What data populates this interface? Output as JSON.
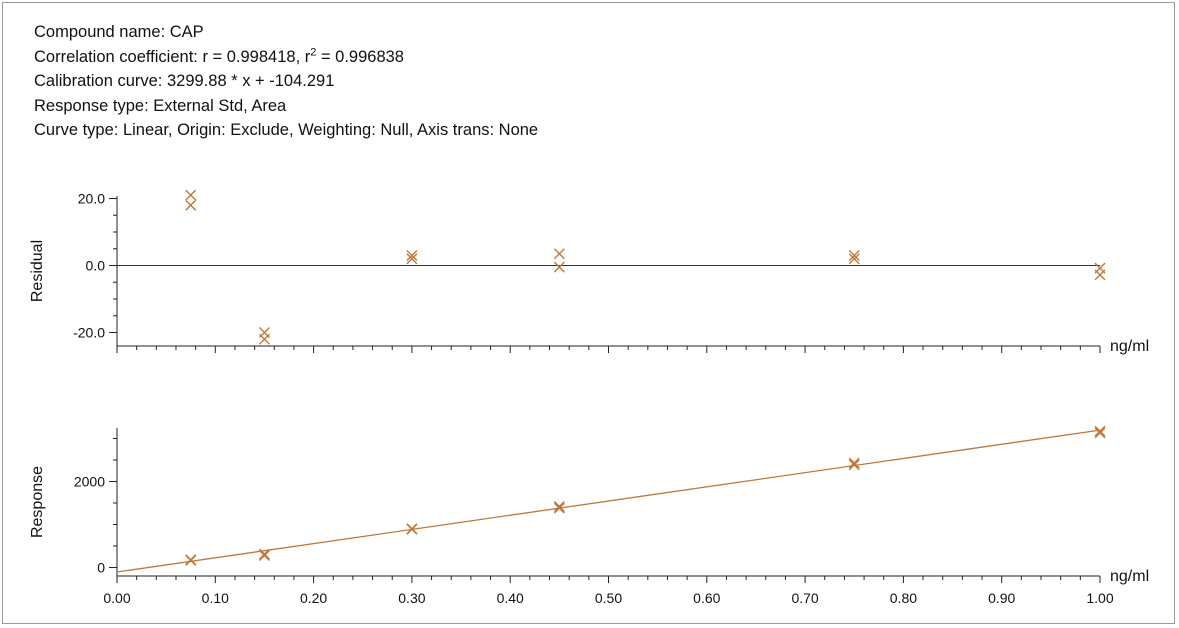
{
  "header": {
    "compound": "Compound name: CAP",
    "correlation_prefix": "Correlation coefficient: r = 0.998418, r",
    "correlation_sup": "2",
    "correlation_suffix": " = 0.996838",
    "calibration": "Calibration curve: 3299.88 * x + -104.291",
    "response_type": "Response type: External Std, Area",
    "curve_type": "Curve type: Linear, Origin: Exclude, Weighting: Null, Axis trans: None"
  },
  "colors": {
    "marker": "#c0783a",
    "fit_line": "#c0783a",
    "axis": "#222222"
  },
  "chart_data": [
    {
      "type": "scatter",
      "ylabel": "Residual",
      "xlabel": "ng/ml",
      "xlim": [
        0.0,
        1.0
      ],
      "ylim": [
        -22,
        22
      ],
      "yticks": [
        "20.0",
        "0.0",
        "-20.0"
      ],
      "ytick_values": [
        20,
        0,
        -20
      ],
      "reference_line": 0,
      "points": [
        {
          "x": 0.075,
          "y": 21
        },
        {
          "x": 0.075,
          "y": 18
        },
        {
          "x": 0.15,
          "y": -20
        },
        {
          "x": 0.15,
          "y": -22
        },
        {
          "x": 0.3,
          "y": 3
        },
        {
          "x": 0.3,
          "y": 2
        },
        {
          "x": 0.45,
          "y": 3.5
        },
        {
          "x": 0.45,
          "y": -0.5
        },
        {
          "x": 0.75,
          "y": 3
        },
        {
          "x": 0.75,
          "y": 2
        },
        {
          "x": 1.0,
          "y": -0.8
        },
        {
          "x": 1.0,
          "y": -2.8
        }
      ]
    },
    {
      "type": "scatter",
      "ylabel": "Response",
      "xlabel": "ng/ml",
      "xlim": [
        0.0,
        1.0
      ],
      "ylim": [
        -100,
        3200
      ],
      "yticks": [
        "2000",
        "0"
      ],
      "ytick_values": [
        2000,
        0
      ],
      "xticks": [
        "0.00",
        "0.10",
        "0.20",
        "0.30",
        "0.40",
        "0.50",
        "0.60",
        "0.70",
        "0.80",
        "0.90",
        "1.00"
      ],
      "xtick_values": [
        0.0,
        0.1,
        0.2,
        0.3,
        0.4,
        0.5,
        0.6,
        0.7,
        0.8,
        0.9,
        1.0
      ],
      "fit": {
        "slope": 3299.88,
        "intercept": -104.291
      },
      "points": [
        {
          "x": 0.075,
          "y": 180
        },
        {
          "x": 0.075,
          "y": 165
        },
        {
          "x": 0.15,
          "y": 310
        },
        {
          "x": 0.15,
          "y": 280
        },
        {
          "x": 0.3,
          "y": 900
        },
        {
          "x": 0.3,
          "y": 890
        },
        {
          "x": 0.45,
          "y": 1420
        },
        {
          "x": 0.45,
          "y": 1380
        },
        {
          "x": 0.75,
          "y": 2430
        },
        {
          "x": 0.75,
          "y": 2390
        },
        {
          "x": 1.0,
          "y": 3170
        },
        {
          "x": 1.0,
          "y": 3130
        }
      ]
    }
  ]
}
